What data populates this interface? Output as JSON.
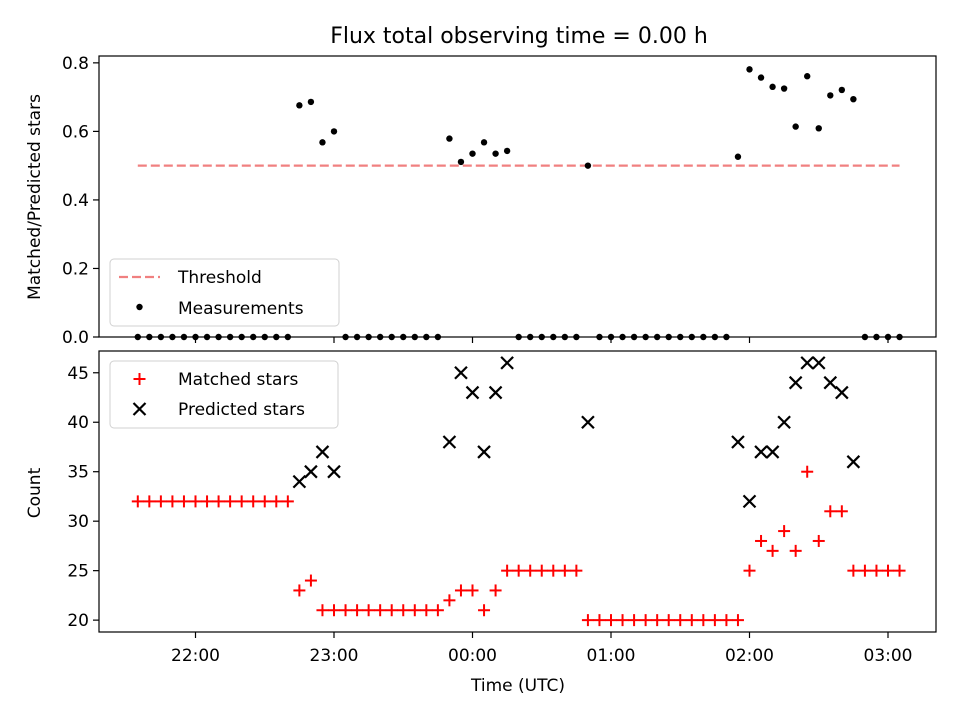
{
  "title": "Flux total observing time = 0.00 h",
  "chart_data": [
    {
      "type": "scatter",
      "ylabel": "Matched/Predicted stars",
      "ylim": [
        0,
        0.82
      ],
      "yticks": [
        "0.0",
        "0.2",
        "0.4",
        "0.6",
        "0.8"
      ],
      "ytick_values": [
        0,
        0.2,
        0.4,
        0.6,
        0.8
      ],
      "legend_position": "lower-left",
      "legend": {
        "threshold": "Threshold",
        "measurements": "Measurements"
      },
      "threshold": {
        "name": "Threshold",
        "value": 0.5,
        "x_start": "21:35",
        "x_end": "03:05",
        "color": "#f08080"
      },
      "series": [
        {
          "name": "Measurements",
          "x": [
            "21:35",
            "21:40",
            "21:45",
            "21:50",
            "21:55",
            "22:00",
            "22:05",
            "22:10",
            "22:15",
            "22:20",
            "22:25",
            "22:30",
            "22:35",
            "22:40",
            "22:45",
            "22:50",
            "22:55",
            "23:00",
            "23:05",
            "23:10",
            "23:15",
            "23:20",
            "23:25",
            "23:30",
            "23:35",
            "23:40",
            "23:45",
            "23:50",
            "23:55",
            "00:00",
            "00:05",
            "00:10",
            "00:15",
            "00:20",
            "00:25",
            "00:30",
            "00:35",
            "00:40",
            "00:45",
            "00:50",
            "00:55",
            "01:00",
            "01:05",
            "01:10",
            "01:15",
            "01:20",
            "01:25",
            "01:30",
            "01:35",
            "01:40",
            "01:45",
            "01:50",
            "01:55",
            "02:00",
            "02:05",
            "02:10",
            "02:15",
            "02:20",
            "02:25",
            "02:30",
            "02:35",
            "02:40",
            "02:45",
            "02:50",
            "02:55",
            "03:00",
            "03:05"
          ],
          "y": [
            0,
            0,
            0,
            0,
            0,
            0,
            0,
            0,
            0,
            0,
            0,
            0,
            0,
            0,
            0.676,
            0.686,
            0.568,
            0.6,
            0,
            0,
            0,
            0,
            0,
            0,
            0,
            0,
            0,
            0.579,
            0.511,
            0.535,
            0.568,
            0.535,
            0.543,
            0,
            0,
            0,
            0,
            0,
            0,
            0.5,
            0,
            0,
            0,
            0,
            0,
            0,
            0,
            0,
            0,
            0,
            0,
            0,
            0.526,
            0.781,
            0.757,
            0.73,
            0.725,
            0.614,
            0.761,
            0.609,
            0.705,
            0.721,
            0.694,
            0,
            0,
            0,
            0
          ]
        }
      ]
    },
    {
      "type": "scatter",
      "xlabel": "Time (UTC)",
      "ylabel": "Count",
      "ylim": [
        18.8,
        47.2
      ],
      "yticks": [
        "20",
        "25",
        "30",
        "35",
        "40",
        "45"
      ],
      "ytick_values": [
        20,
        25,
        30,
        35,
        40,
        45
      ],
      "xticks": [
        "22:00",
        "23:00",
        "00:00",
        "01:00",
        "02:00",
        "03:00"
      ],
      "legend_position": "upper-left",
      "legend": {
        "matched": "Matched stars",
        "predicted": "Predicted stars"
      },
      "series": [
        {
          "name": "Matched stars",
          "marker": "plus",
          "color": "#ff0000",
          "x": [
            "21:35",
            "21:40",
            "21:45",
            "21:50",
            "21:55",
            "22:00",
            "22:05",
            "22:10",
            "22:15",
            "22:20",
            "22:25",
            "22:30",
            "22:35",
            "22:40",
            "22:45",
            "22:50",
            "22:55",
            "23:00",
            "23:05",
            "23:10",
            "23:15",
            "23:20",
            "23:25",
            "23:30",
            "23:35",
            "23:40",
            "23:45",
            "23:50",
            "23:55",
            "00:00",
            "00:05",
            "00:10",
            "00:15",
            "00:20",
            "00:25",
            "00:30",
            "00:35",
            "00:40",
            "00:45",
            "00:50",
            "00:55",
            "01:00",
            "01:05",
            "01:10",
            "01:15",
            "01:20",
            "01:25",
            "01:30",
            "01:35",
            "01:40",
            "01:45",
            "01:50",
            "01:55",
            "02:00",
            "02:05",
            "02:10",
            "02:15",
            "02:20",
            "02:25",
            "02:30",
            "02:35",
            "02:40",
            "02:45",
            "02:50",
            "02:55",
            "03:00",
            "03:05"
          ],
          "y": [
            32,
            32,
            32,
            32,
            32,
            32,
            32,
            32,
            32,
            32,
            32,
            32,
            32,
            32,
            23,
            24,
            21,
            21,
            21,
            21,
            21,
            21,
            21,
            21,
            21,
            21,
            21,
            22,
            23,
            23,
            21,
            23,
            25,
            25,
            25,
            25,
            25,
            25,
            25,
            20,
            20,
            20,
            20,
            20,
            20,
            20,
            20,
            20,
            20,
            20,
            20,
            20,
            20,
            25,
            28,
            27,
            29,
            27,
            35,
            28,
            31,
            31,
            25,
            25,
            25,
            25,
            25
          ]
        },
        {
          "name": "Predicted stars",
          "marker": "x",
          "color": "#000000",
          "x": [
            "22:45",
            "22:50",
            "22:55",
            "23:00",
            "23:50",
            "23:55",
            "00:00",
            "00:05",
            "00:10",
            "00:15",
            "00:50",
            "01:55",
            "02:00",
            "02:05",
            "02:10",
            "02:15",
            "02:20",
            "02:25",
            "02:30",
            "02:35",
            "02:40",
            "02:45"
          ],
          "y": [
            34,
            35,
            37,
            35,
            38,
            45,
            43,
            37,
            43,
            46,
            40,
            38,
            32,
            37,
            37,
            40,
            44,
            46,
            46,
            44,
            43,
            36
          ]
        }
      ]
    }
  ]
}
